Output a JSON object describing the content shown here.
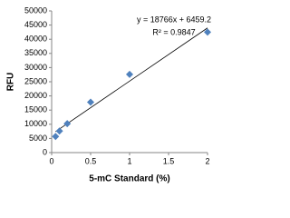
{
  "chart_data": {
    "type": "scatter",
    "x_label": "5-mC Standard (%)",
    "y_label": "RFU",
    "series": [
      {
        "name": "RFU",
        "color": "#4f81bd",
        "x": [
          0.05,
          0.1,
          0.2,
          0.5,
          1,
          2
        ],
        "values": [
          5700,
          7600,
          10200,
          17800,
          27600,
          42500
        ]
      }
    ],
    "trendline": {
      "slope": 18766,
      "intercept": 6459.2,
      "equation": "y = 18766x + 6459.2",
      "r2": "R² = 0.9847",
      "color": "#000000"
    },
    "xlim": [
      0,
      2
    ],
    "xticks": [
      0,
      0.5,
      1,
      1.5,
      2
    ],
    "ylim": [
      0,
      50000
    ],
    "yticks": [
      0,
      5000,
      10000,
      15000,
      20000,
      25000,
      30000,
      35000,
      40000,
      45000,
      50000
    ],
    "grid": false
  }
}
